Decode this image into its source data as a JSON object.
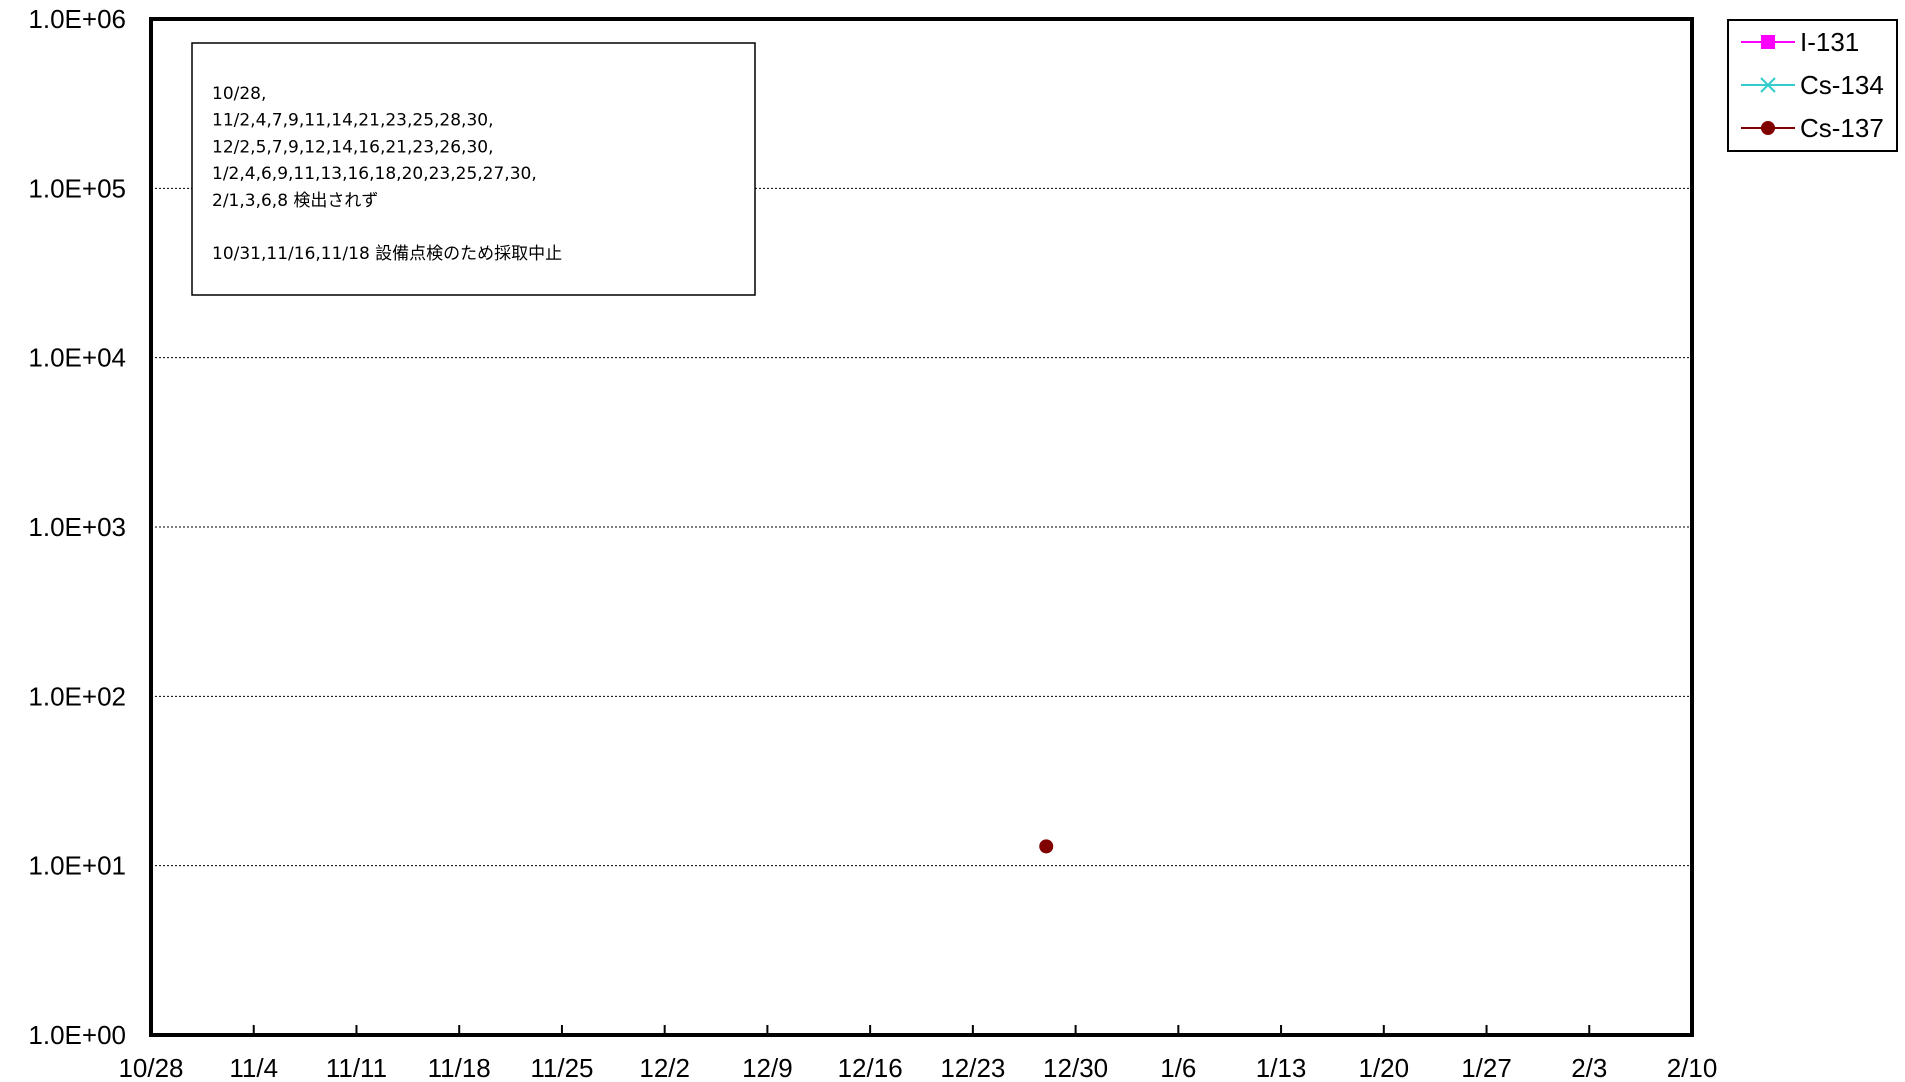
{
  "chart_data": {
    "type": "scatter",
    "title": "",
    "xlabel": "",
    "ylabel": "",
    "y_scale": "log",
    "ylim": [
      1,
      1000000
    ],
    "xlim": [
      "10/28",
      "2/10"
    ],
    "x_tick_labels": [
      "10/28",
      "11/4",
      "11/11",
      "11/18",
      "11/25",
      "12/2",
      "12/9",
      "12/16",
      "12/23",
      "12/30",
      "1/6",
      "1/13",
      "1/20",
      "1/27",
      "2/3",
      "2/10"
    ],
    "y_tick_labels": [
      "1.0E+06",
      "1.0E+05",
      "1.0E+04",
      "1.0E+03",
      "1.0E+02",
      "1.0E+01",
      "1.0E+00"
    ],
    "grid": "horizontal",
    "legend_position": "right-top",
    "series": [
      {
        "name": "I-131",
        "color": "#ff00ff",
        "marker": "square",
        "points": []
      },
      {
        "name": "Cs-134",
        "color": "#33cccc",
        "marker": "x",
        "points": []
      },
      {
        "name": "Cs-137",
        "color": "#800000",
        "marker": "circle",
        "points": [
          {
            "x": "12/28",
            "y": 13
          }
        ]
      }
    ],
    "annotation_lines": [
      "10/28,",
      "11/2,4,7,9,11,14,21,23,25,28,30,",
      "12/2,5,7,9,12,14,16,21,23,26,30,",
      "1/2,4,6,9,11,13,16,18,20,23,25,27,30,",
      "2/1,3,6,8  検出されず",
      "",
      "10/31,11/16,11/18  設備点検のため採取中止"
    ]
  }
}
